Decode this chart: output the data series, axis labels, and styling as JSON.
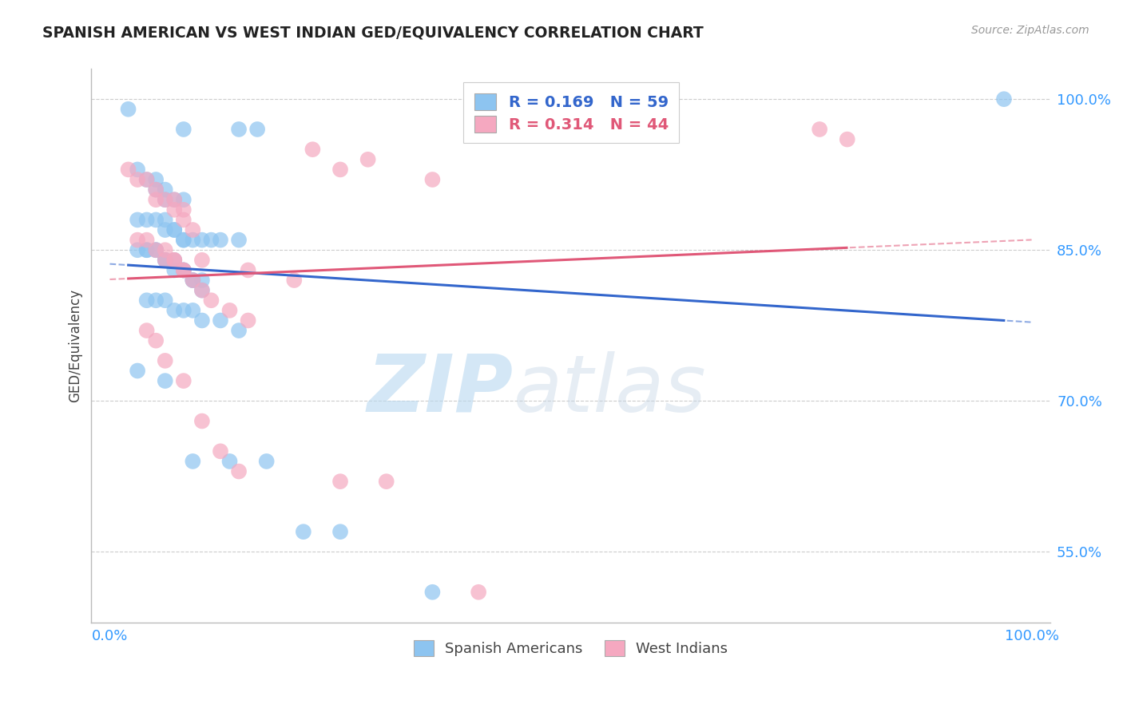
{
  "title": "SPANISH AMERICAN VS WEST INDIAN GED/EQUIVALENCY CORRELATION CHART",
  "source": "Source: ZipAtlas.com",
  "ylabel": "GED/Equivalency",
  "ylim": [
    0.48,
    1.03
  ],
  "xlim": [
    -0.02,
    1.02
  ],
  "yticks": [
    0.55,
    0.7,
    0.85,
    1.0
  ],
  "ytick_labels": [
    "55.0%",
    "70.0%",
    "85.0%",
    "100.0%"
  ],
  "blue_R": 0.169,
  "blue_N": 59,
  "pink_R": 0.314,
  "pink_N": 44,
  "blue_color": "#8dc4f0",
  "pink_color": "#f5a8c0",
  "blue_line_color": "#3366cc",
  "pink_line_color": "#e05878",
  "legend_label_blue": "Spanish Americans",
  "legend_label_pink": "West Indians",
  "watermark_zip": "ZIP",
  "watermark_atlas": "atlas",
  "blue_scatter_x": [
    0.02,
    0.08,
    0.14,
    0.16,
    0.03,
    0.04,
    0.05,
    0.05,
    0.06,
    0.06,
    0.07,
    0.08,
    0.03,
    0.04,
    0.05,
    0.06,
    0.06,
    0.07,
    0.07,
    0.08,
    0.08,
    0.09,
    0.1,
    0.11,
    0.12,
    0.14,
    0.03,
    0.04,
    0.04,
    0.05,
    0.05,
    0.06,
    0.06,
    0.07,
    0.07,
    0.08,
    0.08,
    0.09,
    0.09,
    0.1,
    0.1,
    0.04,
    0.05,
    0.06,
    0.07,
    0.08,
    0.09,
    0.1,
    0.12,
    0.14,
    0.03,
    0.06,
    0.09,
    0.13,
    0.17,
    0.21,
    0.25,
    0.35,
    0.97
  ],
  "blue_scatter_y": [
    0.99,
    0.97,
    0.97,
    0.97,
    0.93,
    0.92,
    0.92,
    0.91,
    0.91,
    0.9,
    0.9,
    0.9,
    0.88,
    0.88,
    0.88,
    0.88,
    0.87,
    0.87,
    0.87,
    0.86,
    0.86,
    0.86,
    0.86,
    0.86,
    0.86,
    0.86,
    0.85,
    0.85,
    0.85,
    0.85,
    0.85,
    0.84,
    0.84,
    0.84,
    0.83,
    0.83,
    0.83,
    0.82,
    0.82,
    0.82,
    0.81,
    0.8,
    0.8,
    0.8,
    0.79,
    0.79,
    0.79,
    0.78,
    0.78,
    0.77,
    0.73,
    0.72,
    0.64,
    0.64,
    0.64,
    0.57,
    0.57,
    0.51,
    1.0
  ],
  "pink_scatter_x": [
    0.02,
    0.03,
    0.04,
    0.05,
    0.05,
    0.06,
    0.07,
    0.07,
    0.08,
    0.08,
    0.09,
    0.03,
    0.04,
    0.05,
    0.06,
    0.07,
    0.07,
    0.08,
    0.08,
    0.09,
    0.1,
    0.11,
    0.13,
    0.15,
    0.04,
    0.05,
    0.06,
    0.08,
    0.1,
    0.12,
    0.14,
    0.06,
    0.1,
    0.15,
    0.2,
    0.22,
    0.28,
    0.25,
    0.3,
    0.77,
    0.8,
    0.25,
    0.35,
    0.4
  ],
  "pink_scatter_y": [
    0.93,
    0.92,
    0.92,
    0.91,
    0.9,
    0.9,
    0.9,
    0.89,
    0.89,
    0.88,
    0.87,
    0.86,
    0.86,
    0.85,
    0.85,
    0.84,
    0.84,
    0.83,
    0.83,
    0.82,
    0.81,
    0.8,
    0.79,
    0.78,
    0.77,
    0.76,
    0.74,
    0.72,
    0.68,
    0.65,
    0.63,
    0.84,
    0.84,
    0.83,
    0.82,
    0.95,
    0.94,
    0.62,
    0.62,
    0.97,
    0.96,
    0.93,
    0.92,
    0.51
  ],
  "title_color": "#222222",
  "axis_label_color": "#444444",
  "tick_color": "#3399ff",
  "grid_color": "#cccccc",
  "background_color": "#ffffff"
}
